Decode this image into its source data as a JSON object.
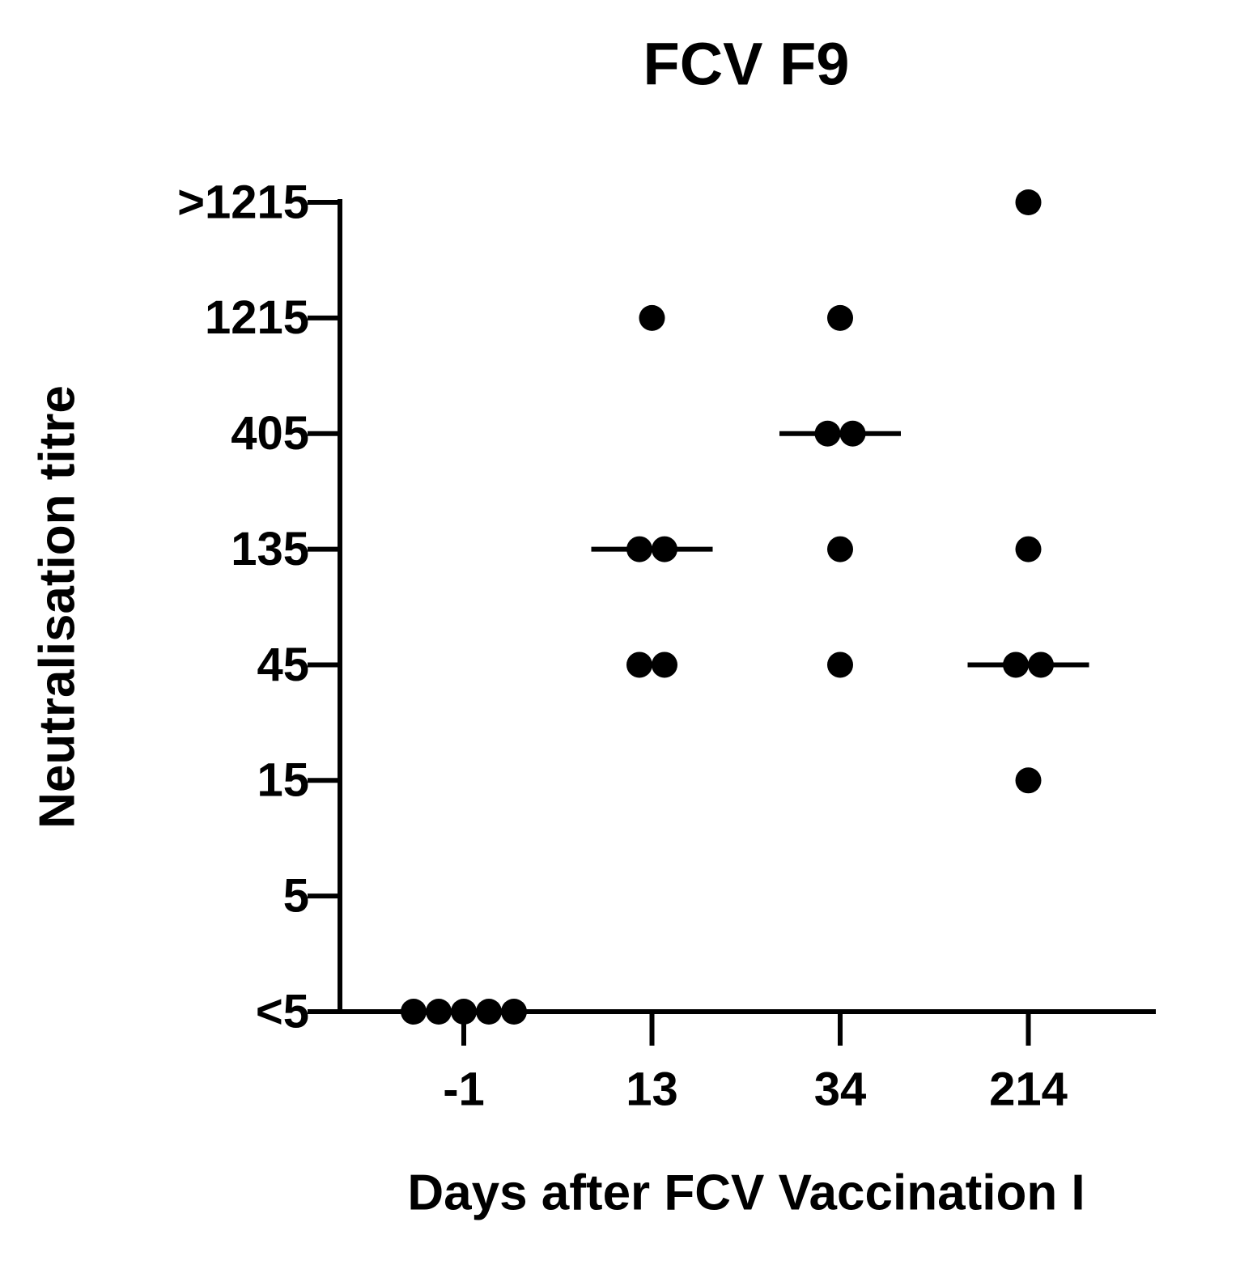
{
  "chart_data": {
    "type": "dot",
    "title": "FCV F9",
    "x_label": "Days after FCV Vaccination I",
    "y_label": "Neutralisation titre",
    "categories": [
      "-1",
      "13",
      "34",
      "214"
    ],
    "values": [
      [
        1.667,
        1.667,
        1.667,
        1.667,
        1.667
      ],
      [
        1215,
        135,
        135,
        45,
        45
      ],
      [
        1215,
        405,
        405,
        135,
        45
      ],
      [
        3645,
        135,
        45,
        45,
        15
      ]
    ],
    "medians": [
      1.667,
      135,
      405,
      45
    ],
    "color": "#000000",
    "yscale": "log",
    "ylim": [
      1.667,
      3645
    ],
    "yticks": [
      {
        "value": 1.667,
        "label": "<5"
      },
      5,
      15,
      45,
      135,
      405,
      1215,
      {
        "value": 3645,
        "label": ">1215"
      }
    ]
  }
}
